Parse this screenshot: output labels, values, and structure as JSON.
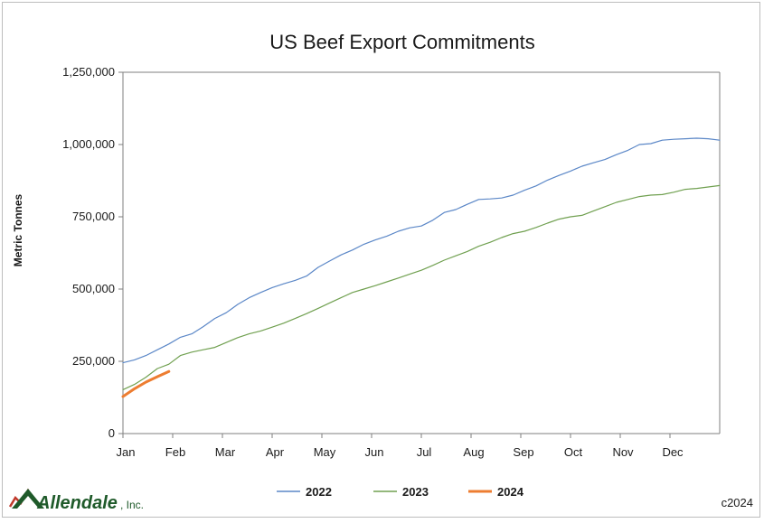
{
  "chart_data": {
    "type": "line",
    "title": "US Beef Export Commitments",
    "xlabel": "",
    "ylabel": "Metric Tonnes",
    "categories": [
      "Jan",
      "Feb",
      "Mar",
      "Apr",
      "May",
      "Jun",
      "Jul",
      "Aug",
      "Sep",
      "Oct",
      "Nov",
      "Dec"
    ],
    "yticks": [
      "0",
      "250,000",
      "500,000",
      "750,000",
      "1,000,000",
      "1,250,000"
    ],
    "ylim": [
      0,
      1250000
    ],
    "xlim_weeks": [
      1,
      53
    ],
    "grid": false,
    "legend": "bottom",
    "series": [
      {
        "name": "2022",
        "color": "#5b87c7",
        "x": [
          1,
          2,
          3,
          4,
          5,
          6,
          7,
          8,
          9,
          10,
          11,
          12,
          13,
          14,
          15,
          16,
          17,
          18,
          19,
          20,
          21,
          22,
          23,
          24,
          25,
          26,
          27,
          28,
          29,
          30,
          31,
          32,
          33,
          34,
          35,
          36,
          37,
          38,
          39,
          40,
          41,
          42,
          43,
          44,
          45,
          46,
          47,
          48,
          49,
          50,
          51,
          52,
          53
        ],
        "values": [
          245000,
          255000,
          270000,
          290000,
          310000,
          333000,
          345000,
          370000,
          398000,
          418000,
          447000,
          470000,
          488000,
          505000,
          518000,
          530000,
          545000,
          575000,
          597000,
          618000,
          635000,
          655000,
          670000,
          683000,
          700000,
          712000,
          718000,
          738000,
          765000,
          775000,
          793000,
          810000,
          812000,
          815000,
          825000,
          842000,
          857000,
          877000,
          893000,
          908000,
          925000,
          937000,
          948000,
          965000,
          980000,
          1000000,
          1003000,
          1015000,
          1018000,
          1020000,
          1022000,
          1020000,
          1015000
        ]
      },
      {
        "name": "2023",
        "color": "#70a050",
        "x": [
          1,
          2,
          3,
          4,
          5,
          6,
          7,
          8,
          9,
          10,
          11,
          12,
          13,
          14,
          15,
          16,
          17,
          18,
          19,
          20,
          21,
          22,
          23,
          24,
          25,
          26,
          27,
          28,
          29,
          30,
          31,
          32,
          33,
          34,
          35,
          36,
          37,
          38,
          39,
          40,
          41,
          42,
          43,
          44,
          45,
          46,
          47,
          48,
          49,
          50,
          51,
          52,
          53
        ],
        "values": [
          152000,
          170000,
          195000,
          225000,
          240000,
          270000,
          282000,
          290000,
          298000,
          315000,
          332000,
          345000,
          355000,
          368000,
          382000,
          398000,
          415000,
          433000,
          452000,
          470000,
          488000,
          500000,
          512000,
          525000,
          538000,
          552000,
          565000,
          582000,
          600000,
          615000,
          630000,
          648000,
          662000,
          678000,
          692000,
          700000,
          713000,
          728000,
          742000,
          750000,
          755000,
          770000,
          785000,
          800000,
          810000,
          820000,
          825000,
          827000,
          835000,
          845000,
          848000,
          853000,
          858000
        ]
      },
      {
        "name": "2024",
        "color": "#ed7d31",
        "x": [
          1,
          2,
          3,
          4,
          5
        ],
        "values": [
          128000,
          155000,
          178000,
          197000,
          215000
        ]
      }
    ]
  },
  "footer": {
    "logo_name": "Allendale",
    "logo_suffix": ", Inc.",
    "copyright": "c2024"
  },
  "colors": {
    "axis": "#7f7f7f",
    "logo_green": "#1f5a2a",
    "logo_red": "#c0392b"
  }
}
